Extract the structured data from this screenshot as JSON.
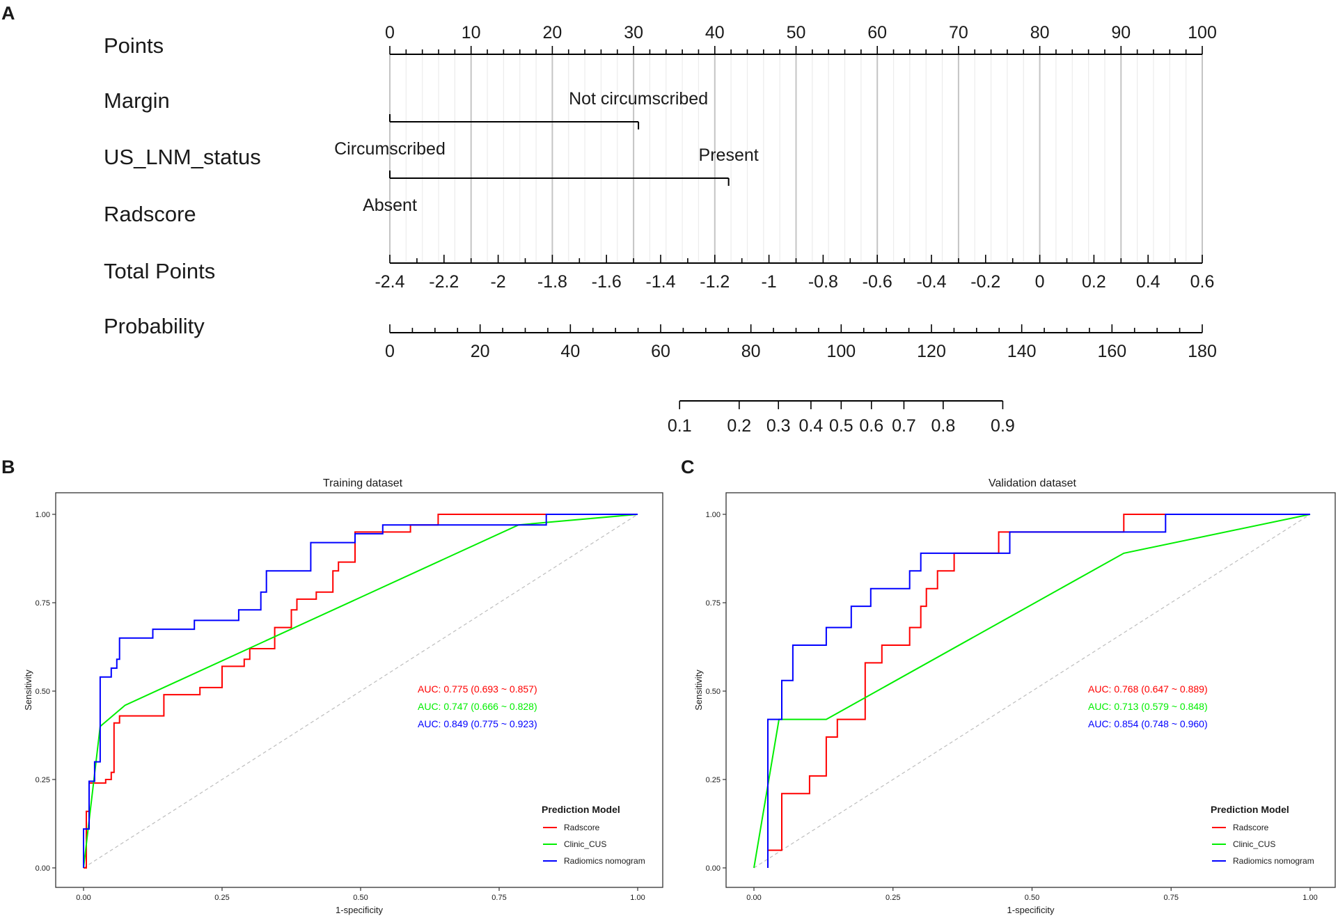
{
  "panels": {
    "a": "A",
    "b": "B",
    "c": "C"
  },
  "chart_data": [
    {
      "type": "nomogram",
      "rows": [
        {
          "label": "Points",
          "kind": "points",
          "range": [
            0,
            100
          ],
          "tick_labels": [
            "0",
            "10",
            "20",
            "30",
            "40",
            "50",
            "60",
            "70",
            "80",
            "90",
            "100"
          ]
        },
        {
          "label": "Margin",
          "kind": "categorical",
          "categories": [
            {
              "name": "Circumscribed",
              "points": 0
            },
            {
              "name": "Not circumscribed",
              "points": 30.6
            }
          ]
        },
        {
          "label": "US_LNM_status",
          "kind": "categorical",
          "categories": [
            {
              "name": "Absent",
              "points": 0
            },
            {
              "name": "Present",
              "points": 41.7
            }
          ]
        },
        {
          "label": "Radscore",
          "kind": "continuous",
          "range": [
            -2.4,
            0.6
          ],
          "tick_labels": [
            "-2.4",
            "-2.2",
            "-2",
            "-1.8",
            "-1.6",
            "-1.4",
            "-1.2",
            "-1",
            "-0.8",
            "-0.6",
            "-0.4",
            "-0.2",
            "0",
            "0.2",
            "0.4",
            "0.6"
          ]
        },
        {
          "label": "Total Points",
          "kind": "total",
          "range": [
            0,
            180
          ],
          "tick_labels": [
            "0",
            "20",
            "40",
            "60",
            "80",
            "100",
            "120",
            "140",
            "160",
            "180"
          ]
        },
        {
          "label": "Probability",
          "kind": "probability",
          "tick_labels": [
            "0.1",
            "0.2",
            "0.3",
            "0.4",
            "0.5",
            "0.6",
            "0.7",
            "0.8",
            "0.9"
          ],
          "total_points_at": [
            64.2,
            77.4,
            86.1,
            93.3,
            100.0,
            106.7,
            113.9,
            122.6,
            135.8
          ]
        }
      ]
    },
    {
      "type": "line",
      "title": "Training dataset",
      "xlabel": "1-specificity",
      "ylabel": "Sensitivity",
      "xlim": [
        0,
        1
      ],
      "ylim": [
        0,
        1
      ],
      "x_ticks": [
        "0.00",
        "0.25",
        "0.50",
        "0.75",
        "1.00"
      ],
      "y_ticks": [
        "0.00",
        "0.25",
        "0.50",
        "0.75",
        "1.00"
      ],
      "auc_labels": [
        {
          "text": "AUC: 0.775 (0.693 ~ 0.857)",
          "color": "#ff0000"
        },
        {
          "text": "AUC: 0.747 (0.666 ~ 0.828)",
          "color": "#00ee00"
        },
        {
          "text": "AUC: 0.849 (0.775 ~ 0.923)",
          "color": "#0000ff"
        }
      ],
      "legend_title": "Prediction Model",
      "series": [
        {
          "name": "Radscore",
          "color": "#ff0000",
          "x": [
            0,
            0.005,
            0.005,
            0.01,
            0.01,
            0.02,
            0.02,
            0.04,
            0.04,
            0.05,
            0.05,
            0.055,
            0.055,
            0.065,
            0.065,
            0.145,
            0.145,
            0.21,
            0.21,
            0.25,
            0.25,
            0.29,
            0.29,
            0.3,
            0.3,
            0.345,
            0.345,
            0.375,
            0.375,
            0.385,
            0.385,
            0.42,
            0.42,
            0.45,
            0.45,
            0.46,
            0.46,
            0.49,
            0.49,
            0.59,
            0.59,
            0.64,
            0.64,
            1
          ],
          "y": [
            0,
            0,
            0.16,
            0.16,
            0.24,
            0.24,
            0.24,
            0.24,
            0.25,
            0.25,
            0.27,
            0.27,
            0.41,
            0.41,
            0.43,
            0.43,
            0.49,
            0.49,
            0.51,
            0.51,
            0.57,
            0.57,
            0.59,
            0.59,
            0.62,
            0.62,
            0.68,
            0.68,
            0.73,
            0.73,
            0.76,
            0.76,
            0.78,
            0.78,
            0.84,
            0.84,
            0.865,
            0.865,
            0.95,
            0.95,
            0.97,
            0.97,
            1,
            1
          ]
        },
        {
          "name": "Clinic_CUS",
          "color": "#00ee00",
          "x": [
            0,
            0.03,
            0.075,
            0.785,
            1
          ],
          "y": [
            0,
            0.4,
            0.46,
            0.97,
            1
          ]
        },
        {
          "name": "Radiomics nomogram",
          "color": "#0000ff",
          "x": [
            0,
            0,
            0.01,
            0.01,
            0.02,
            0.02,
            0.03,
            0.03,
            0.05,
            0.05,
            0.06,
            0.06,
            0.065,
            0.065,
            0.125,
            0.125,
            0.2,
            0.2,
            0.28,
            0.28,
            0.32,
            0.32,
            0.33,
            0.33,
            0.41,
            0.41,
            0.49,
            0.49,
            0.54,
            0.54,
            0.835,
            0.835,
            1
          ],
          "y": [
            0,
            0.11,
            0.11,
            0.245,
            0.245,
            0.3,
            0.3,
            0.54,
            0.54,
            0.565,
            0.565,
            0.59,
            0.59,
            0.65,
            0.65,
            0.675,
            0.675,
            0.7,
            0.7,
            0.73,
            0.73,
            0.78,
            0.78,
            0.84,
            0.84,
            0.92,
            0.92,
            0.945,
            0.945,
            0.97,
            0.97,
            1,
            1
          ]
        }
      ]
    },
    {
      "type": "line",
      "title": "Validation dataset",
      "xlabel": "1-specificity",
      "ylabel": "Sensitivity",
      "xlim": [
        0,
        1
      ],
      "ylim": [
        0,
        1
      ],
      "x_ticks": [
        "0.00",
        "0.25",
        "0.50",
        "0.75",
        "1.00"
      ],
      "y_ticks": [
        "0.00",
        "0.25",
        "0.50",
        "0.75",
        "1.00"
      ],
      "auc_labels": [
        {
          "text": "AUC: 0.768 (0.647 ~ 0.889)",
          "color": "#ff0000"
        },
        {
          "text": "AUC: 0.713 (0.579 ~ 0.848)",
          "color": "#00ee00"
        },
        {
          "text": "AUC: 0.854 (0.748 ~ 0.960)",
          "color": "#0000ff"
        }
      ],
      "legend_title": "Prediction Model",
      "series": [
        {
          "name": "Radscore",
          "color": "#ff0000",
          "x": [
            0.025,
            0.05,
            0.05,
            0.1,
            0.1,
            0.13,
            0.13,
            0.15,
            0.15,
            0.2,
            0.2,
            0.23,
            0.23,
            0.28,
            0.28,
            0.3,
            0.3,
            0.31,
            0.31,
            0.33,
            0.33,
            0.36,
            0.36,
            0.44,
            0.44,
            0.48,
            0.48,
            0.665,
            0.665,
            0.74,
            0.74,
            1
          ],
          "y": [
            0.05,
            0.05,
            0.21,
            0.21,
            0.26,
            0.26,
            0.37,
            0.37,
            0.42,
            0.42,
            0.58,
            0.58,
            0.63,
            0.63,
            0.68,
            0.68,
            0.74,
            0.74,
            0.79,
            0.79,
            0.84,
            0.84,
            0.89,
            0.89,
            0.95,
            0.95,
            0.95,
            0.95,
            1,
            1,
            1,
            1
          ]
        },
        {
          "name": "Clinic_CUS",
          "color": "#00ee00",
          "x": [
            0,
            0.045,
            0.13,
            0.665,
            1
          ],
          "y": [
            0,
            0.42,
            0.42,
            0.89,
            1
          ]
        },
        {
          "name": "Radiomics nomogram",
          "color": "#0000ff",
          "x": [
            0.025,
            0.025,
            0.05,
            0.05,
            0.07,
            0.07,
            0.09,
            0.09,
            0.13,
            0.13,
            0.175,
            0.175,
            0.21,
            0.21,
            0.28,
            0.28,
            0.3,
            0.3,
            0.46,
            0.46,
            0.74,
            0.74,
            1
          ],
          "y": [
            0,
            0.42,
            0.42,
            0.53,
            0.53,
            0.63,
            0.63,
            0.63,
            0.63,
            0.68,
            0.68,
            0.74,
            0.74,
            0.79,
            0.79,
            0.84,
            0.84,
            0.89,
            0.89,
            0.95,
            0.95,
            1,
            1
          ]
        }
      ]
    }
  ]
}
